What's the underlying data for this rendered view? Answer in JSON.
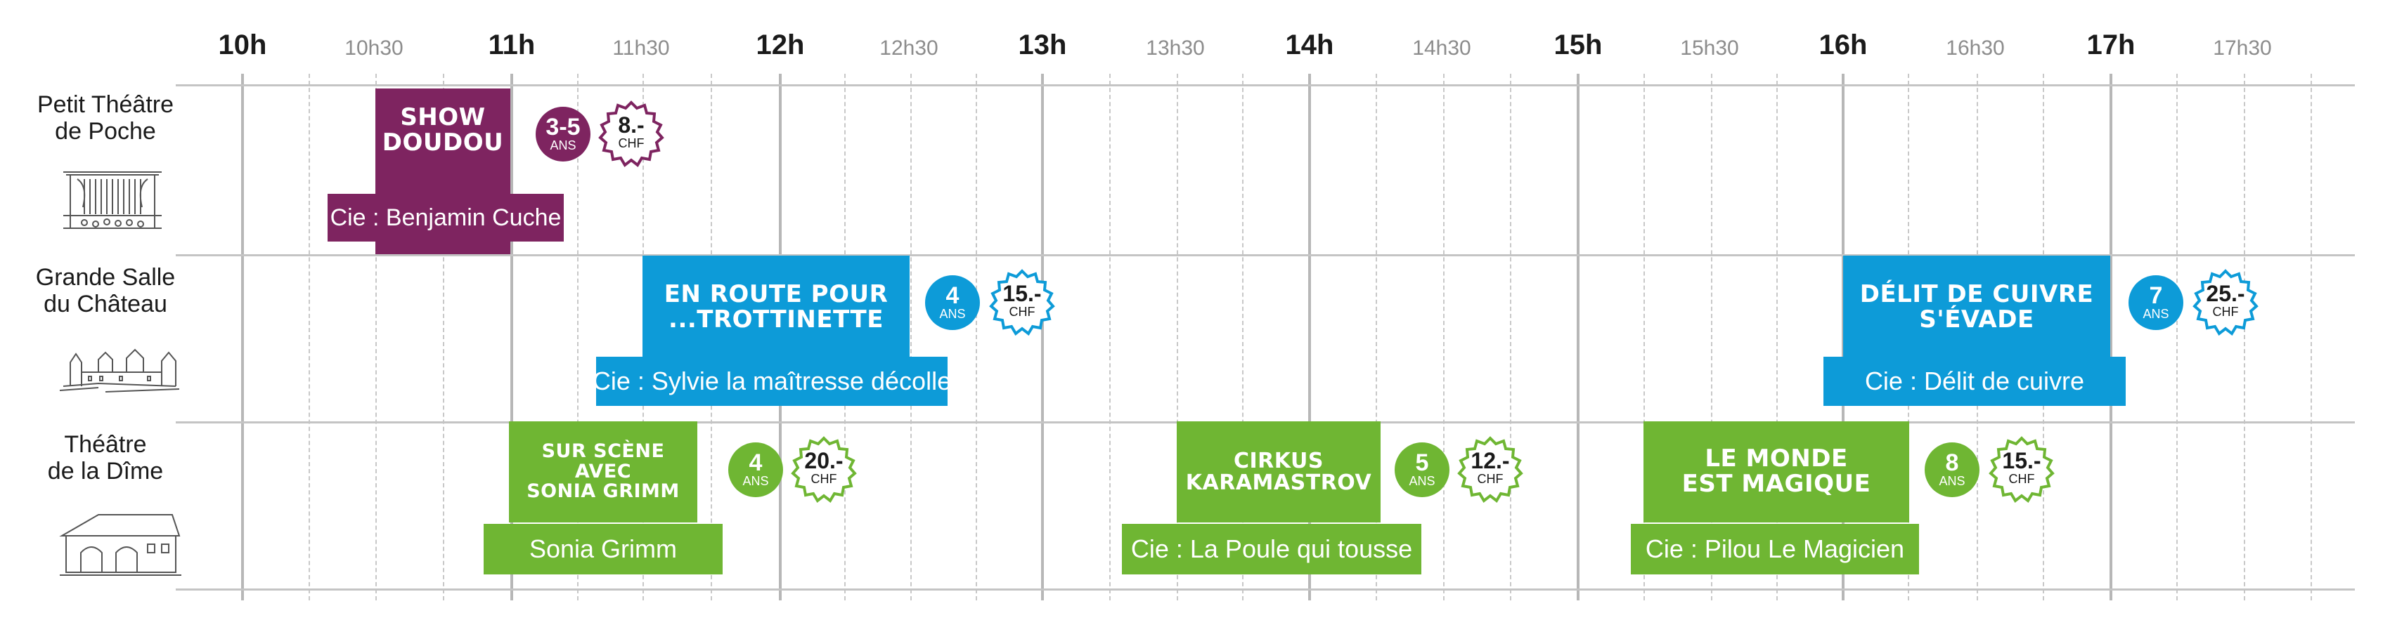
{
  "time_axis": {
    "hours": [
      "10h",
      "11h",
      "12h",
      "13h",
      "14h",
      "15h",
      "16h",
      "17h"
    ],
    "half_hours": [
      "10h30",
      "11h30",
      "12h30",
      "13h30",
      "14h30",
      "15h30",
      "16h30",
      "17h30"
    ]
  },
  "venues": [
    {
      "name": "Petit Théâtre\nde Poche",
      "icon": "theatre-stage-icon"
    },
    {
      "name": "Grande Salle\ndu Château",
      "icon": "castle-icon"
    },
    {
      "name": "Théâtre\nde la Dîme",
      "icon": "barn-building-icon"
    }
  ],
  "colors": {
    "purple": "#7e2460",
    "purple_dark": "#5e1a47",
    "blue": "#0d9bd8",
    "blue_dark": "#0a7aae",
    "green": "#6fb633",
    "green_dark": "#569028"
  },
  "shows": [
    {
      "title": "SHOW\nDOUDOU",
      "company": "Cie : Benjamin Cuche",
      "age": "3-5",
      "age_unit": "ANS",
      "price": "8.-",
      "currency": "CHF",
      "venue": 0,
      "color": "purple",
      "start": "10h30",
      "end": "11h00"
    },
    {
      "title": "EN ROUTE POUR\n...TROTTINETTE",
      "company": "Cie : Sylvie la maîtresse décolle",
      "age": "4",
      "age_unit": "ANS",
      "price": "15.-",
      "currency": "CHF",
      "venue": 1,
      "color": "blue",
      "start": "11h30",
      "end": "12h30"
    },
    {
      "title": "DÉLIT DE CUIVRE\nS'ÉVADE",
      "company": "Cie : Délit de cuivre",
      "age": "7",
      "age_unit": "ANS",
      "price": "25.-",
      "currency": "CHF",
      "venue": 1,
      "color": "blue",
      "start": "16h00",
      "end": "17h00"
    },
    {
      "title": "SUR SCÈNE\nAVEC\nSONIA GRIMM",
      "company": "Sonia Grimm",
      "age": "4",
      "age_unit": "ANS",
      "price": "20.-",
      "currency": "CHF",
      "venue": 2,
      "color": "green",
      "start": "11h00",
      "end": "11h45"
    },
    {
      "title": "CIRKUS\nKARAMASTROV",
      "company": "Cie : La Poule qui tousse",
      "age": "5",
      "age_unit": "ANS",
      "price": "12.-",
      "currency": "CHF",
      "venue": 2,
      "color": "green",
      "start": "13h30",
      "end": "14h15"
    },
    {
      "title": "LE MONDE\nEST MAGIQUE",
      "company": "Cie : Pilou Le Magicien",
      "age": "8",
      "age_unit": "ANS",
      "price": "15.-",
      "currency": "CHF",
      "venue": 2,
      "color": "green",
      "start": "15h15",
      "end": "16h15"
    }
  ]
}
